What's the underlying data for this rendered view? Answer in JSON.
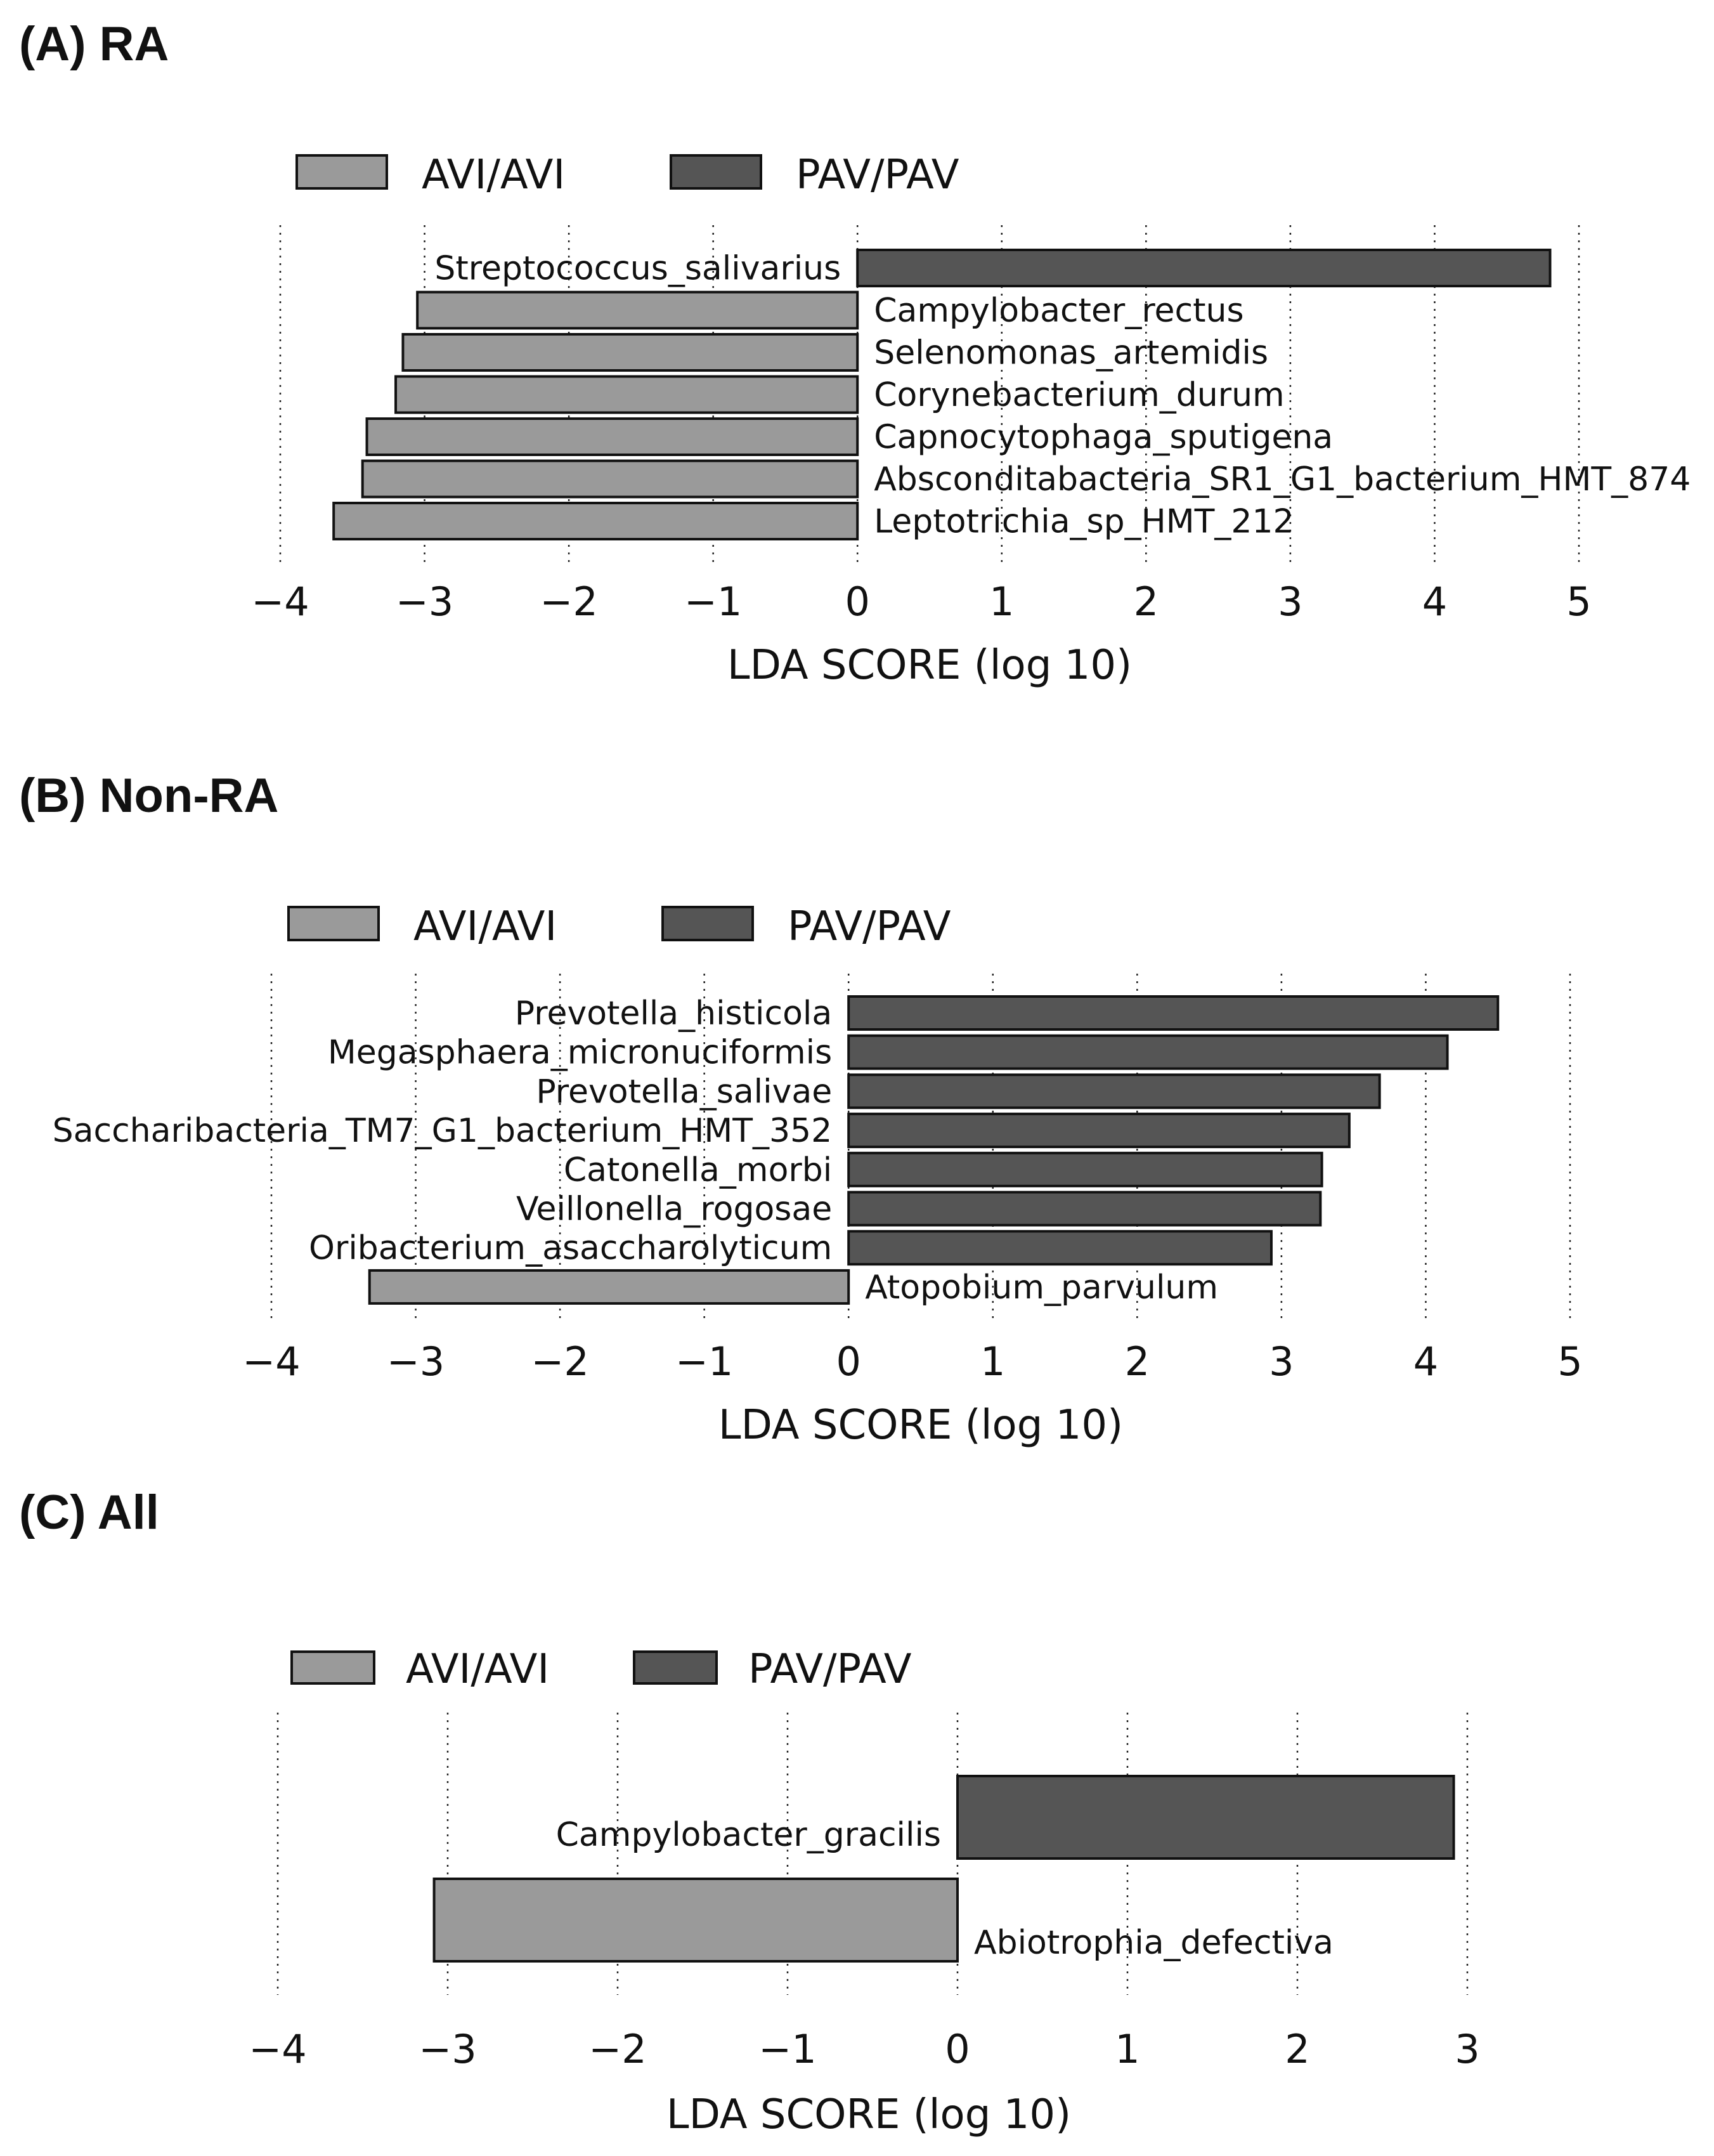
{
  "colors": {
    "avi": "#9a9a9a",
    "pav": "#555555",
    "stroke": "#111111"
  },
  "legend": {
    "avi_label": "AVI/AVI",
    "pav_label": "PAV/PAV"
  },
  "chart_data": [
    {
      "type": "bar",
      "orientation": "horizontal",
      "title": "(A) RA",
      "xlabel": "LDA SCORE (log 10)",
      "xlim": [
        -4,
        5
      ],
      "xticks": [
        -4,
        -3,
        -2,
        -1,
        0,
        1,
        2,
        3,
        4,
        5
      ],
      "xtick_labels": [
        "−4",
        "−3",
        "−2",
        "−1",
        "0",
        "1",
        "2",
        "3",
        "4",
        "5"
      ],
      "legend": [
        "AVI/AVI",
        "PAV/PAV"
      ],
      "bars": [
        {
          "name": "Streptococcus_salivarius",
          "value": 4.8,
          "group": "PAV/PAV"
        },
        {
          "name": "Campylobacter_rectus",
          "value": -3.05,
          "group": "AVI/AVI"
        },
        {
          "name": "Selenomonas_artemidis",
          "value": -3.15,
          "group": "AVI/AVI"
        },
        {
          "name": "Corynebacterium_durum",
          "value": -3.2,
          "group": "AVI/AVI"
        },
        {
          "name": "Capnocytophaga_sputigena",
          "value": -3.4,
          "group": "AVI/AVI"
        },
        {
          "name": "Absconditabacteria_SR1_G1_bacterium_HMT_874",
          "value": -3.43,
          "group": "AVI/AVI"
        },
        {
          "name": "Leptotrichia_sp_HMT_212",
          "value": -3.63,
          "group": "AVI/AVI"
        }
      ]
    },
    {
      "type": "bar",
      "orientation": "horizontal",
      "title": "(B) Non-RA",
      "xlabel": "LDA SCORE (log 10)",
      "xlim": [
        -4,
        5
      ],
      "xticks": [
        -4,
        -3,
        -2,
        -1,
        0,
        1,
        2,
        3,
        4,
        5
      ],
      "xtick_labels": [
        "−4",
        "−3",
        "−2",
        "−1",
        "0",
        "1",
        "2",
        "3",
        "4",
        "5"
      ],
      "legend": [
        "AVI/AVI",
        "PAV/PAV"
      ],
      "bars": [
        {
          "name": "Prevotella_histicola",
          "value": 4.5,
          "group": "PAV/PAV"
        },
        {
          "name": "Megasphaera_micronuciformis",
          "value": 4.15,
          "group": "PAV/PAV"
        },
        {
          "name": "Prevotella_salivae",
          "value": 3.68,
          "group": "PAV/PAV"
        },
        {
          "name": "Saccharibacteria_TM7_G1_bacterium_HMT_352",
          "value": 3.47,
          "group": "PAV/PAV"
        },
        {
          "name": "Catonella_morbi",
          "value": 3.28,
          "group": "PAV/PAV"
        },
        {
          "name": "Veillonella_rogosae",
          "value": 3.27,
          "group": "PAV/PAV"
        },
        {
          "name": "Oribacterium_asaccharolyticum",
          "value": 2.93,
          "group": "PAV/PAV"
        },
        {
          "name": "Atopobium_parvulum",
          "value": -3.32,
          "group": "AVI/AVI"
        }
      ]
    },
    {
      "type": "bar",
      "orientation": "horizontal",
      "title": "(C) All",
      "xlabel": "LDA SCORE (log 10)",
      "xlim": [
        -4,
        3
      ],
      "xticks": [
        -4,
        -3,
        -2,
        -1,
        0,
        1,
        2,
        3
      ],
      "xtick_labels": [
        "−4",
        "−3",
        "−2",
        "−1",
        "0",
        "1",
        "2",
        "3"
      ],
      "legend": [
        "AVI/AVI",
        "PAV/PAV"
      ],
      "bars": [
        {
          "name": "Campylobacter_gracilis",
          "value": 2.92,
          "group": "PAV/PAV"
        },
        {
          "name": "Abiotrophia_defectiva",
          "value": -3.08,
          "group": "AVI/AVI"
        }
      ]
    }
  ]
}
